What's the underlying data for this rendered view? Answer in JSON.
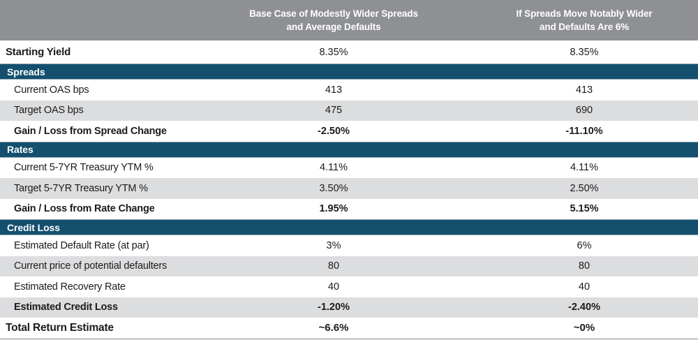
{
  "colors": {
    "section_bar": "#14506E",
    "header_bg": "#8E9093",
    "row_alt_bg": "#DCDDDF",
    "text_dark": "#1B1B1B",
    "header_text": "#FFFFFF"
  },
  "header": {
    "col1": {
      "line1": "Base Case of Modestly Wider Spreads",
      "line2": "and Average Defaults"
    },
    "col2": {
      "line1": "If Spreads Move Notably Wider",
      "line2": "and Defaults Are 6%"
    }
  },
  "rows": [
    {
      "label": "Starting Yield",
      "base_case": "8.35%",
      "wider_case": "8.35%"
    },
    {
      "label": "Spreads"
    },
    {
      "label": "Current OAS bps",
      "base_case": "413",
      "wider_case": "413"
    },
    {
      "label": "Target OAS bps",
      "base_case": "475",
      "wider_case": "690"
    },
    {
      "label": "Gain / Loss from Spread Change",
      "base_case": "-2.50%",
      "wider_case": "-11.10%"
    },
    {
      "label": "Rates"
    },
    {
      "label": "Current 5-7YR Treasury YTM %",
      "base_case": "4.11%",
      "wider_case": "4.11%"
    },
    {
      "label": "Target 5-7YR Treasury YTM %",
      "base_case": "3.50%",
      "wider_case": "2.50%"
    },
    {
      "label": "Gain / Loss from Rate Change",
      "base_case": "1.95%",
      "wider_case": "5.15%"
    },
    {
      "label": "Credit Loss"
    },
    {
      "label": "Estimated Default Rate (at par)",
      "base_case": "3%",
      "wider_case": "6%"
    },
    {
      "label": "Current price of potential defaulters",
      "base_case": "80",
      "wider_case": "80"
    },
    {
      "label": "Estimated Recovery Rate",
      "base_case": "40",
      "wider_case": "40"
    },
    {
      "label": "Estimated Credit Loss",
      "base_case": "-1.20%",
      "wider_case": "-2.40%"
    },
    {
      "label": "Total Return Estimate",
      "base_case": "~6.6%",
      "wider_case": "~0%"
    }
  ]
}
